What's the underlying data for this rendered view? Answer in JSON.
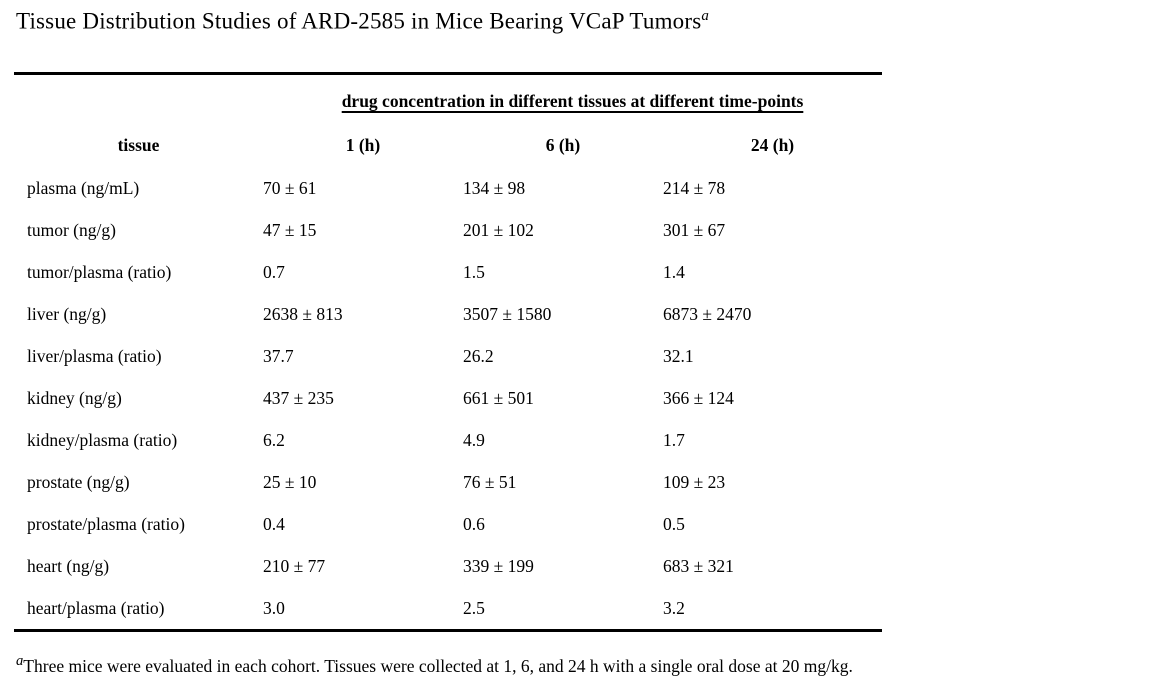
{
  "title": {
    "text": "Tissue Distribution Studies of ARD-2585 in Mice Bearing VCaP Tumors",
    "superscript": "a"
  },
  "table": {
    "spanner_header": "drug concentration in different tissues at different time-points",
    "columns": [
      "tissue",
      "1 (h)",
      "6 (h)",
      "24 (h)"
    ],
    "rows": [
      {
        "tissue": "plasma (ng/mL)",
        "t1": "70 ± 61",
        "t6": "134 ± 98",
        "t24": "214 ± 78"
      },
      {
        "tissue": "tumor (ng/g)",
        "t1": "47 ± 15",
        "t6": "201 ± 102",
        "t24": "301 ± 67"
      },
      {
        "tissue": "tumor/plasma (ratio)",
        "t1": "0.7",
        "t6": "1.5",
        "t24": "1.4"
      },
      {
        "tissue": "liver (ng/g)",
        "t1": "2638 ± 813",
        "t6": "3507 ± 1580",
        "t24": "6873 ± 2470"
      },
      {
        "tissue": "liver/plasma (ratio)",
        "t1": "37.7",
        "t6": "26.2",
        "t24": "32.1"
      },
      {
        "tissue": "kidney (ng/g)",
        "t1": "437 ± 235",
        "t6": "661 ± 501",
        "t24": "366 ± 124"
      },
      {
        "tissue": "kidney/plasma (ratio)",
        "t1": "6.2",
        "t6": "4.9",
        "t24": "1.7"
      },
      {
        "tissue": "prostate (ng/g)",
        "t1": "25 ± 10",
        "t6": "76 ± 51",
        "t24": "109 ± 23"
      },
      {
        "tissue": "prostate/plasma (ratio)",
        "t1": "0.4",
        "t6": "0.6",
        "t24": "0.5"
      },
      {
        "tissue": "heart (ng/g)",
        "t1": "210 ± 77",
        "t6": "339 ± 199",
        "t24": "683 ± 321"
      },
      {
        "tissue": "heart/plasma (ratio)",
        "t1": "3.0",
        "t6": "2.5",
        "t24": "3.2"
      }
    ]
  },
  "footnote": {
    "superscript": "a",
    "text": "Three mice were evaluated in each cohort. Tissues were collected at 1, 6, and 24 h with a single oral dose at 20 mg/kg."
  },
  "colors": {
    "text": "#000000",
    "background": "#ffffff",
    "rule": "#000000"
  }
}
